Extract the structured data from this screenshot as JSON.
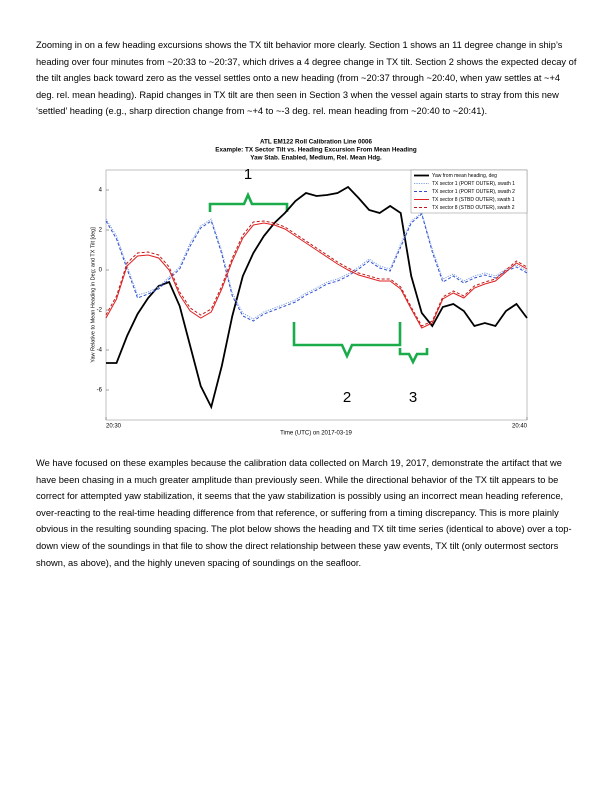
{
  "paragraphs": [
    "Zooming in on a few heading excursions shows the TX tilt behavior more clearly.  Section 1 shows an 11 degree change in ship’s heading over four minutes from ~20:33 to ~20:37, which drives a 4 degree change in TX tilt.  Section 2 shows the expected decay of the tilt angles back toward zero as the vessel settles onto a new heading (from ~20:37 through ~20:40, when yaw settles at ~+4 deg. rel. mean heading).  Rapid changes in TX tilt are then seen in Section 3 when the vessel again starts to stray from this new ‘settled’ heading (e.g., sharp direction change from ~+4 to ~-3 deg. rel. mean heading from ~20:40 to ~20:41).",
    "We have focused on these examples because the calibration data collected on March 19, 2017, demonstrate the artifact that we have been chasing in a much greater amplitude than previously seen.  While the directional behavior of the TX tilt appears to be correct for attempted yaw stabilization, it seems that the yaw stabilization is possibly using an incorrect mean heading reference, over-reacting to the real-time heading difference from that reference, or suffering from a timing discrepancy.  This is more plainly obvious in the resulting sounding spacing.  The plot below shows the heading and TX tilt time series (identical to above) over a top-down view of the soundings in that file to show the direct relationship between these yaw events, TX tilt (only outermost sectors shown, as above), and the highly uneven spacing of soundings on the seafloor."
  ],
  "chart_data": {
    "type": "line",
    "title": [
      "ATL EM122 Roll Calibration Line 0006",
      "Example: TX Sector Tilt vs. Heading Excursion From Mean Heading",
      "Yaw Stab. Enabled, Medium, Rel. Mean Hdg."
    ],
    "x_label": "Time (UTC) on 2017-03-19",
    "y_label": "Yaw Relative to Mean Heading in Deg; and TX Tilt [deg]",
    "x": [
      "20:30:00",
      "20:30:15",
      "20:30:30",
      "20:30:45",
      "20:31:00",
      "20:31:15",
      "20:31:30",
      "20:31:45",
      "20:32:00",
      "20:32:15",
      "20:32:30",
      "20:32:45",
      "20:33:00",
      "20:33:15",
      "20:33:30",
      "20:33:45",
      "20:34:00",
      "20:34:15",
      "20:34:30",
      "20:34:45",
      "20:35:00",
      "20:35:15",
      "20:35:30",
      "20:35:45",
      "20:36:00",
      "20:36:15",
      "20:36:30",
      "20:36:45",
      "20:37:00",
      "20:37:15",
      "20:37:30",
      "20:37:45",
      "20:38:00",
      "20:38:15",
      "20:38:30",
      "20:38:45",
      "20:39:00",
      "20:39:15",
      "20:39:30",
      "20:39:45",
      "20:40:00"
    ],
    "xlim": [
      "20:30:00",
      "20:40:00"
    ],
    "xticks": [
      {
        "value": "20:30:00",
        "label": "20:30"
      },
      {
        "value": "20:40:00",
        "label": "20:40"
      }
    ],
    "ylim": [
      -7.5,
      5
    ],
    "yticks": [
      -6,
      -4,
      -2,
      0,
      2,
      4
    ],
    "legend": "upper right",
    "series": [
      {
        "name": "Yaw from mean heading, deg",
        "color": "#000000",
        "style": "solid",
        "width": 1.8,
        "values": [
          -4.65,
          -4.65,
          -3.3,
          -2.2,
          -1.4,
          -0.8,
          -0.6,
          -1.8,
          -3.8,
          -5.8,
          -6.85,
          -4.8,
          -2.3,
          -0.3,
          0.85,
          1.7,
          2.35,
          2.85,
          3.45,
          3.85,
          3.7,
          3.75,
          3.85,
          4.15,
          3.6,
          3.0,
          2.85,
          3.2,
          2.85,
          -0.3,
          -2.15,
          -2.8,
          -1.85,
          -1.7,
          -2.05,
          -2.8,
          -2.65,
          -2.8,
          -2.05,
          -1.7,
          -2.4
        ]
      },
      {
        "name": "TX sector 1 (PORT OUTER), swath 1",
        "color": "#7f9fe8",
        "style": "dotted",
        "width": 1,
        "values": [
          2.55,
          1.7,
          0.2,
          -1.25,
          -1.1,
          -0.85,
          -0.35,
          0.15,
          1.35,
          2.2,
          2.55,
          0.95,
          -1.15,
          -2.15,
          -2.45,
          -2.1,
          -1.9,
          -1.7,
          -1.5,
          -1.15,
          -0.9,
          -0.6,
          -0.45,
          -0.2,
          0.15,
          0.55,
          0.2,
          0.05,
          1.3,
          2.45,
          2.85,
          1.05,
          -0.45,
          -0.2,
          -0.55,
          -0.3,
          -0.15,
          -0.3,
          0.05,
          0.25,
          -0.05
        ]
      },
      {
        "name": "TX sector 1 (PORT OUTER), swath 2",
        "color": "#3050d0",
        "style": "dashed",
        "width": 1,
        "values": [
          2.45,
          1.55,
          0.05,
          -1.4,
          -1.2,
          -0.95,
          -0.45,
          0.05,
          1.2,
          2.1,
          2.45,
          0.8,
          -1.3,
          -2.3,
          -2.55,
          -2.2,
          -2.0,
          -1.8,
          -1.6,
          -1.25,
          -1.0,
          -0.7,
          -0.55,
          -0.3,
          0.05,
          0.45,
          0.1,
          -0.05,
          1.15,
          2.35,
          2.8,
          0.9,
          -0.6,
          -0.3,
          -0.65,
          -0.4,
          -0.25,
          -0.4,
          -0.05,
          0.15,
          -0.15
        ]
      },
      {
        "name": "TX sector 8 (STBD OUTER), swath 1",
        "color": "#e02020",
        "style": "solid",
        "width": 1,
        "values": [
          -2.4,
          -1.45,
          0.2,
          0.7,
          0.75,
          0.6,
          0.0,
          -1.25,
          -2.05,
          -2.4,
          -2.1,
          -0.95,
          0.45,
          1.6,
          2.25,
          2.35,
          2.25,
          2.05,
          1.7,
          1.35,
          1.0,
          0.65,
          0.3,
          0.0,
          -0.25,
          -0.4,
          -0.55,
          -0.55,
          -0.95,
          -1.95,
          -2.9,
          -2.65,
          -1.45,
          -1.15,
          -1.4,
          -0.9,
          -0.7,
          -0.55,
          -0.1,
          0.35,
          0.05
        ]
      },
      {
        "name": "TX sector 8 (STBD OUTER), swath 2",
        "color": "#c01818",
        "style": "dashed",
        "width": 1,
        "values": [
          -2.25,
          -1.3,
          0.35,
          0.85,
          0.9,
          0.75,
          0.15,
          -1.1,
          -1.9,
          -2.25,
          -1.95,
          -0.8,
          0.6,
          1.75,
          2.4,
          2.45,
          2.35,
          2.15,
          1.8,
          1.45,
          1.1,
          0.75,
          0.4,
          0.1,
          -0.15,
          -0.3,
          -0.45,
          -0.45,
          -0.85,
          -1.85,
          -2.8,
          -2.55,
          -1.35,
          -1.05,
          -1.3,
          -0.8,
          -0.6,
          -0.45,
          0.0,
          0.45,
          0.15
        ]
      }
    ],
    "annotations": [
      "1",
      "2",
      "3"
    ]
  }
}
